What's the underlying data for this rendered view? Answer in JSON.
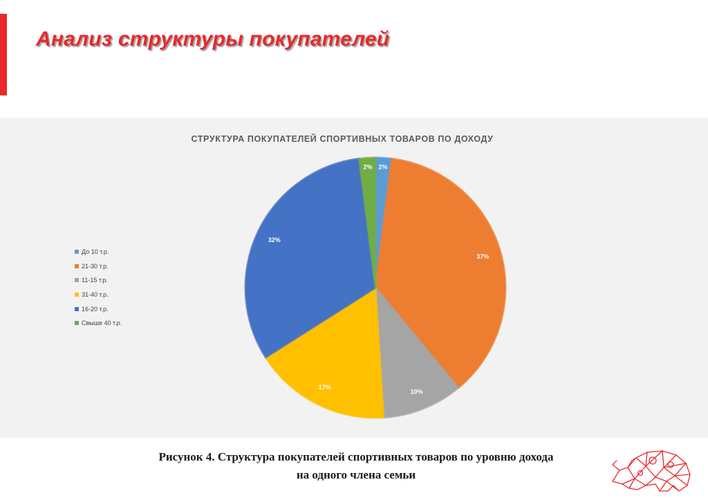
{
  "slide": {
    "title": "Анализ структуры покупателей",
    "accent_color": "#e8282b"
  },
  "caption": {
    "line1": "Рисунок 4. Структура покупателей спортивных товаров по уровню дохода",
    "line2": "на одного члена семьи"
  },
  "logo": {
    "icon": "rhino-logo-icon",
    "color": "#e8282b"
  },
  "chart_data": {
    "type": "pie",
    "title": "Структура покупателей спортивных товаров по доходу",
    "legend_position": "left",
    "slices": [
      {
        "label": "До 10 т.р.",
        "value": 2,
        "value_label": "2%",
        "color": "#5b9bd5"
      },
      {
        "label": "21-30 т.р.",
        "value": 37,
        "value_label": "37%",
        "color": "#ed7d31"
      },
      {
        "label": "11-15 т.р.",
        "value": 10,
        "value_label": "10%",
        "color": "#a5a5a5"
      },
      {
        "label": "31-40 т.р.",
        "value": 17,
        "value_label": "17%",
        "color": "#ffc000"
      },
      {
        "label": "16-20 т.р.",
        "value": 32,
        "value_label": "32%",
        "color": "#4472c4"
      },
      {
        "label": "Свыше 40 т.р.",
        "value": 2,
        "value_label": "2%",
        "color": "#70ad47"
      }
    ]
  }
}
